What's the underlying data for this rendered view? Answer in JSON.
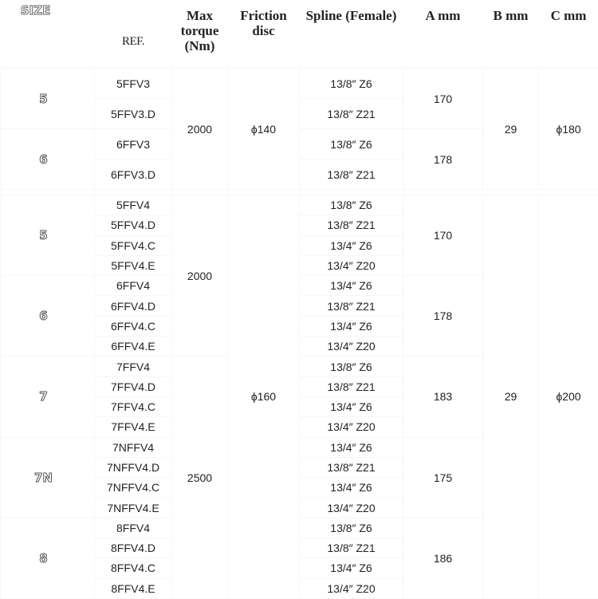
{
  "headers": {
    "size": "SIZE",
    "ref": "REF.",
    "torque": "Max torque (Nm)",
    "friction": "Friction disc",
    "spline": "Spline (Female)",
    "a": "A mm",
    "b": "B mm",
    "c": "C mm"
  },
  "sections": [
    {
      "rows": [
        {
          "ref": "5FFV3",
          "spline": "13/8″ Z6"
        },
        {
          "ref": "5FFV3.D",
          "spline": "13/8″ Z21"
        },
        {
          "ref": "6FFV3",
          "spline": "13/8″ Z6"
        },
        {
          "ref": "6FFV3.D",
          "spline": "13/8″ Z21"
        }
      ],
      "size": [
        {
          "value": "5",
          "rows": 2
        },
        {
          "value": "6",
          "rows": 2
        }
      ],
      "torque": [
        {
          "value": "2000",
          "rows": 4
        }
      ],
      "friction": [
        {
          "value": "ϕ140",
          "rows": 4
        }
      ],
      "a": [
        {
          "value": "170",
          "rows": 2
        },
        {
          "value": "178",
          "rows": 2
        }
      ],
      "b": [
        {
          "value": "29",
          "rows": 4
        }
      ],
      "c": [
        {
          "value": "ϕ180",
          "rows": 4
        }
      ]
    },
    {
      "rows": [
        {
          "ref": "5FFV4",
          "spline": "13/8″ Z6"
        },
        {
          "ref": "5FFV4.D",
          "spline": "13/8″ Z21"
        },
        {
          "ref": "5FFV4.C",
          "spline": "13/4″ Z6"
        },
        {
          "ref": "5FFV4.E",
          "spline": "13/4″ Z20"
        },
        {
          "ref": "6FFV4",
          "spline": "13/4″ Z6"
        },
        {
          "ref": "6FFV4.D",
          "spline": "13/8″ Z21"
        },
        {
          "ref": "6FFV4.C",
          "spline": "13/4″ Z6"
        },
        {
          "ref": "6FFV4.E",
          "spline": "13/4″ Z20"
        },
        {
          "ref": "7FFV4",
          "spline": "13/8″ Z6"
        },
        {
          "ref": "7FFV4.D",
          "spline": "13/8″ Z21"
        },
        {
          "ref": "7FFV4.C",
          "spline": "13/4″ Z6"
        },
        {
          "ref": "7FFV4.E",
          "spline": "13/4″ Z20"
        },
        {
          "ref": "7NFFV4",
          "spline": "13/4″ Z6"
        },
        {
          "ref": "7NFFV4.D",
          "spline": "13/8″ Z21"
        },
        {
          "ref": "7NFFV4.C",
          "spline": "13/4″ Z6"
        },
        {
          "ref": "7NFFV4.E",
          "spline": "13/4″ Z20"
        },
        {
          "ref": "8FFV4",
          "spline": "13/8″ Z6"
        },
        {
          "ref": "8FFV4.D",
          "spline": "13/8″ Z21"
        },
        {
          "ref": "8FFV4.C",
          "spline": "13/4″ Z6"
        },
        {
          "ref": "8FFV4.E",
          "spline": "13/4″ Z20"
        }
      ],
      "size": [
        {
          "value": "5",
          "rows": 4
        },
        {
          "value": "6",
          "rows": 4
        },
        {
          "value": "7",
          "rows": 4
        },
        {
          "value": "7N",
          "rows": 4
        },
        {
          "value": "8",
          "rows": 4
        }
      ],
      "torque": [
        {
          "value": "2000",
          "rows": 8
        },
        {
          "value": "2500",
          "rows": 12
        }
      ],
      "friction": [
        {
          "value": "ϕ160",
          "rows": 20
        }
      ],
      "a": [
        {
          "value": "170",
          "rows": 4
        },
        {
          "value": "178",
          "rows": 4
        },
        {
          "value": "183",
          "rows": 4
        },
        {
          "value": "175",
          "rows": 4
        },
        {
          "value": "186",
          "rows": 4
        }
      ],
      "b": [
        {
          "value": "29",
          "rows": 20
        }
      ],
      "c": [
        {
          "value": "ϕ200",
          "rows": 20
        }
      ]
    }
  ]
}
